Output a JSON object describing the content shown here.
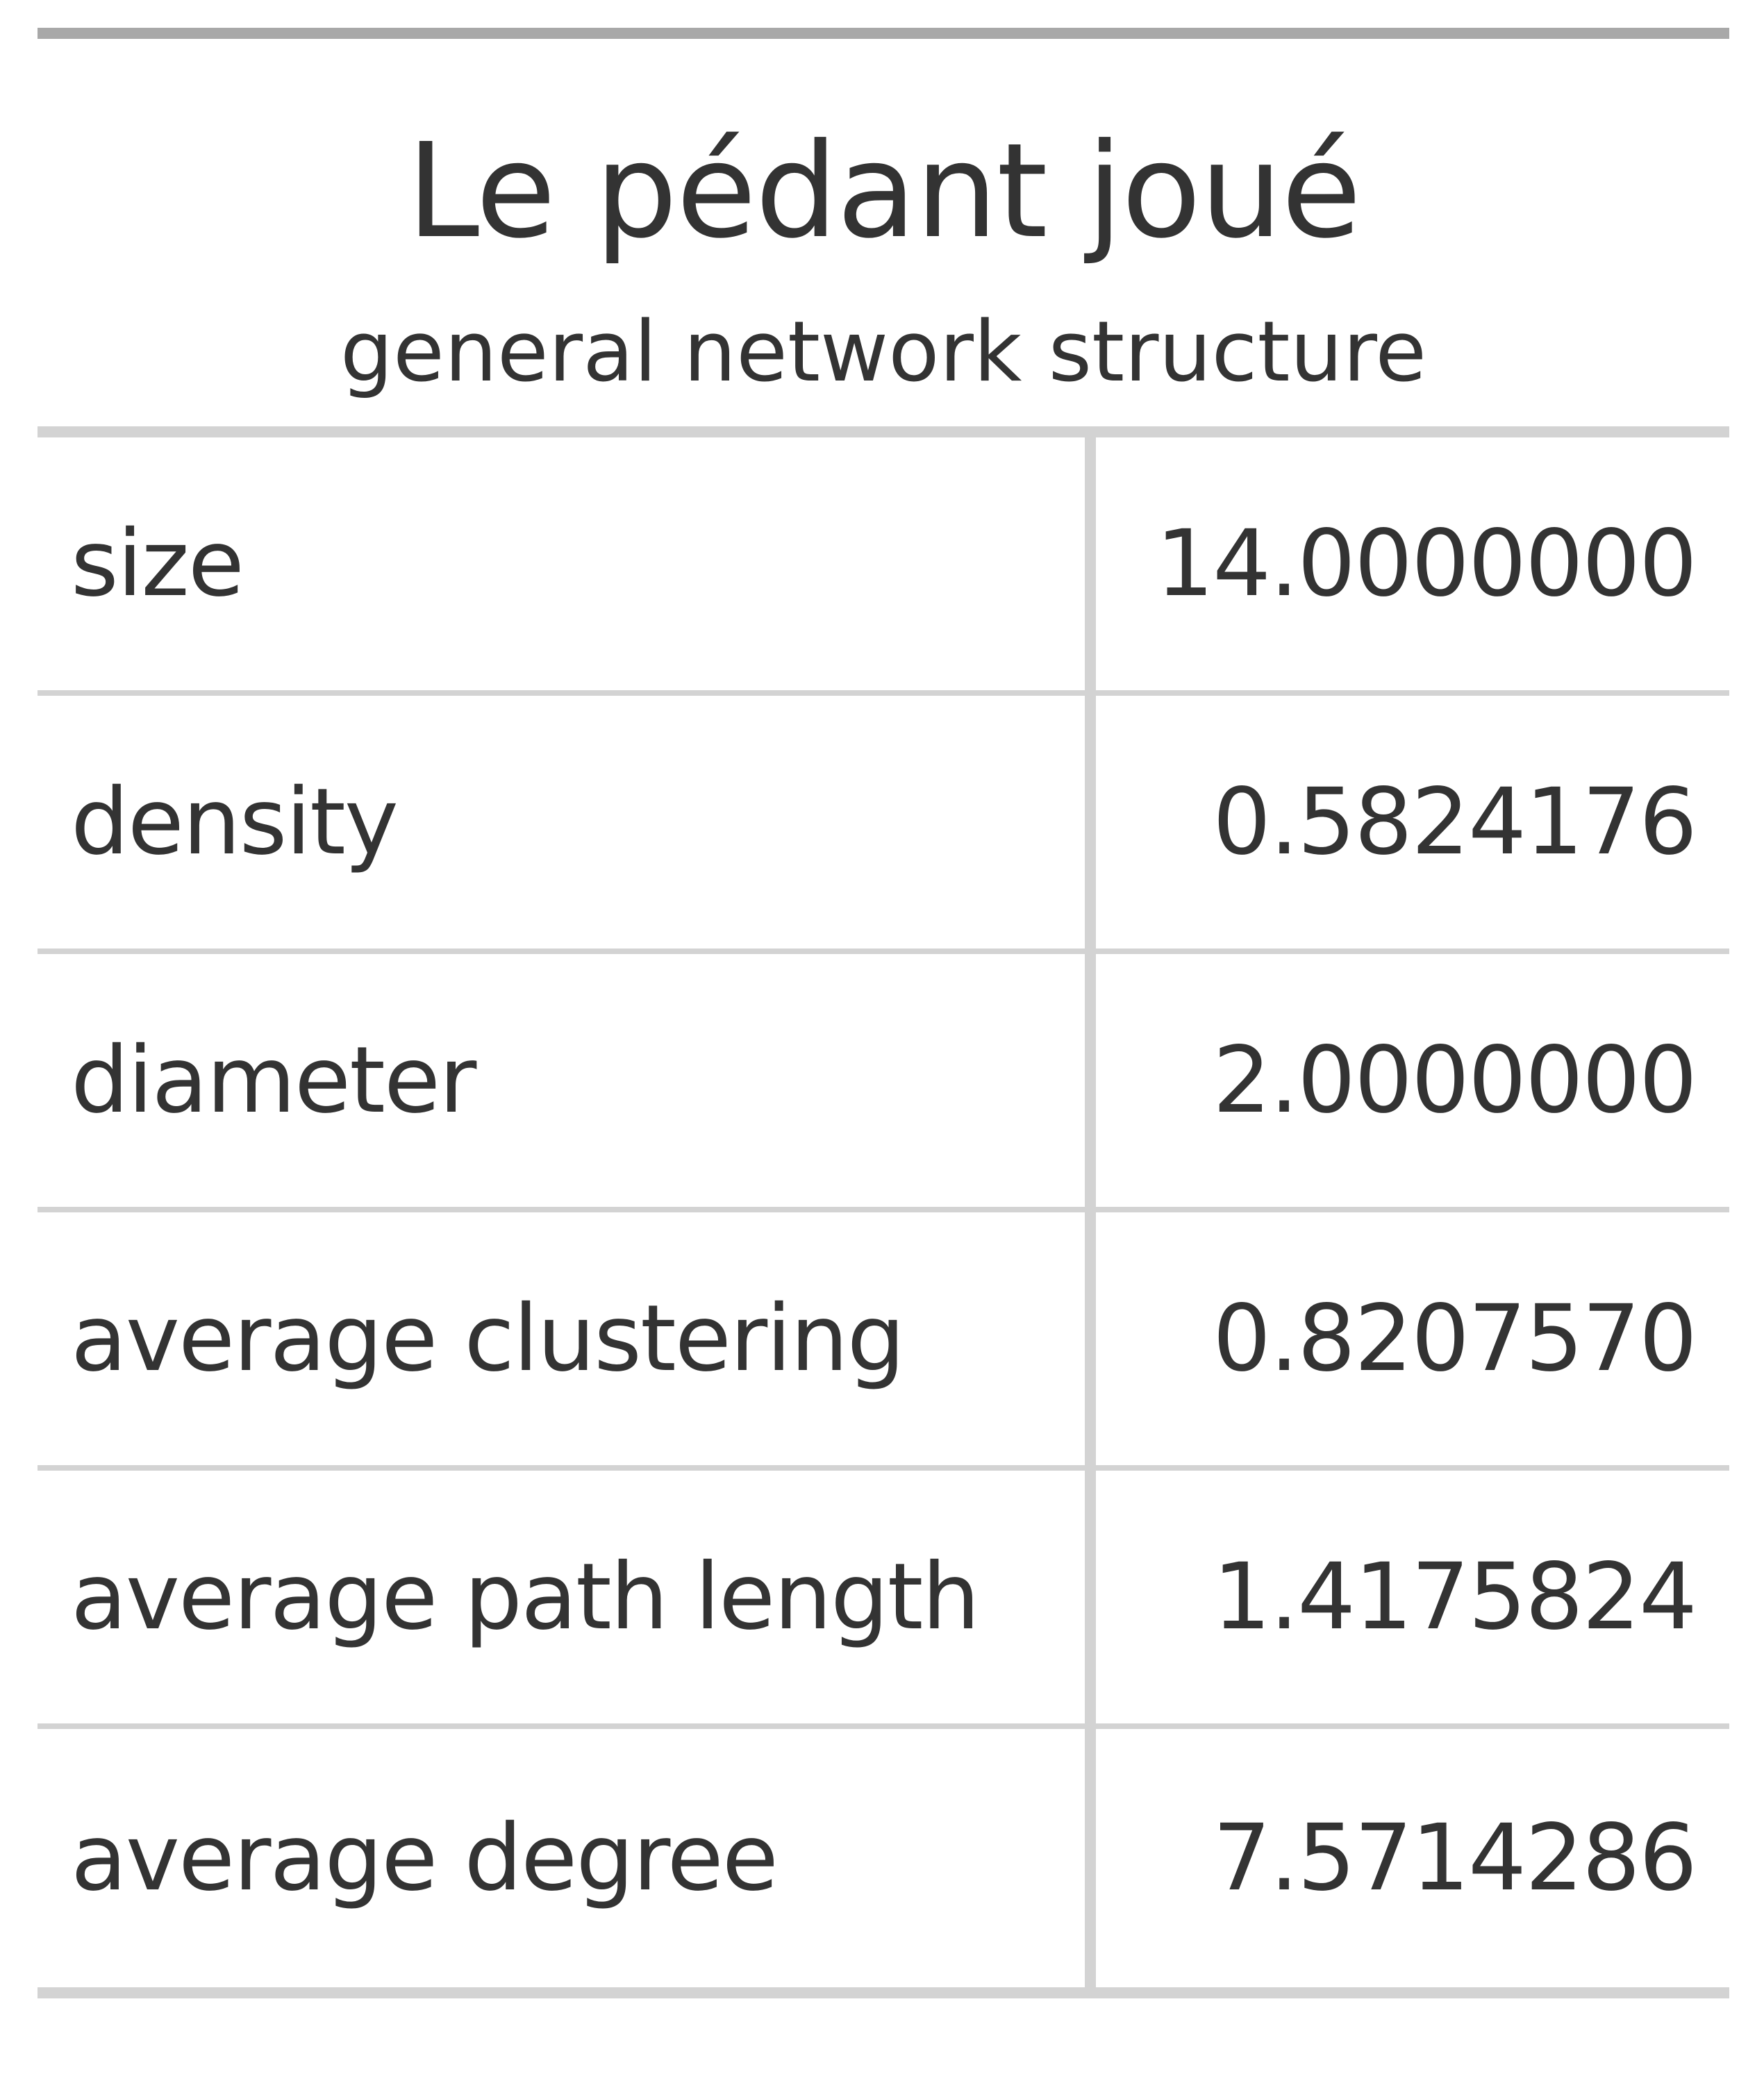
{
  "table": {
    "title": "Le pédant joué",
    "subtitle": "general network structure",
    "rows": [
      {
        "label": "size",
        "value": "14.0000000"
      },
      {
        "label": "density",
        "value": "0.5824176"
      },
      {
        "label": "diameter",
        "value": "2.0000000"
      },
      {
        "label": "average clustering",
        "value": "0.8207570"
      },
      {
        "label": "average path length",
        "value": "1.4175824"
      },
      {
        "label": "average degree",
        "value": "7.5714286"
      }
    ]
  }
}
